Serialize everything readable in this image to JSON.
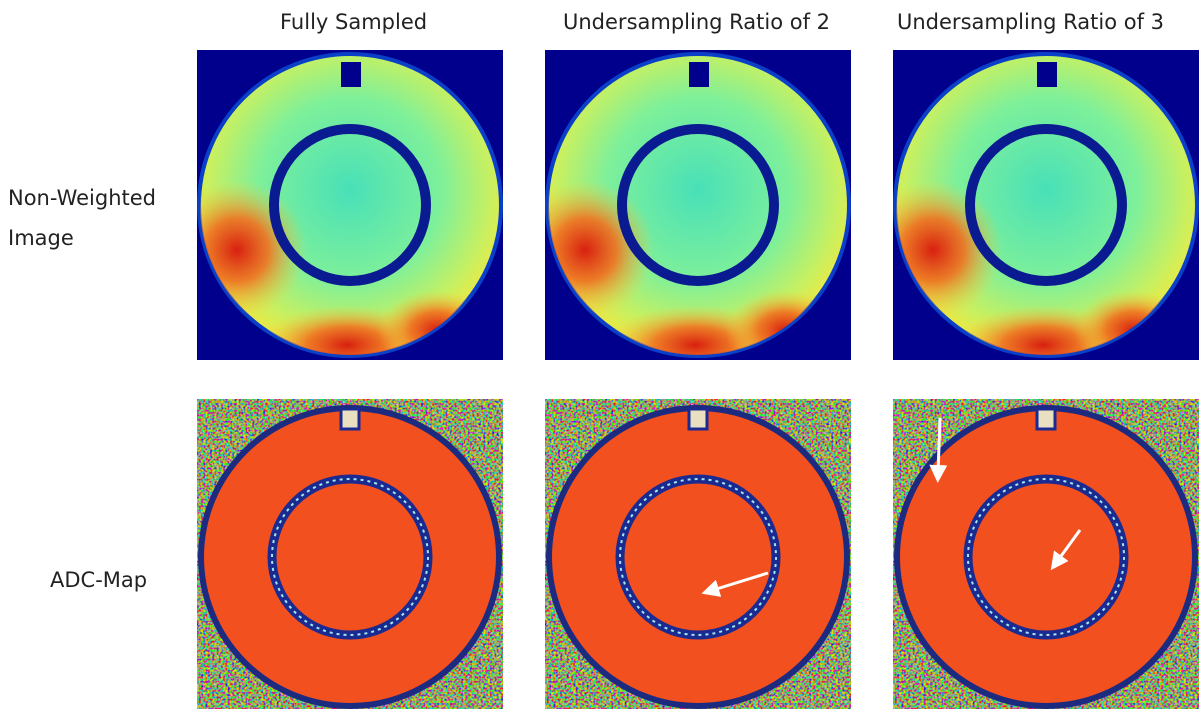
{
  "columns": [
    "Fully Sampled",
    "Undersampling Ratio of 2",
    "Undersampling Ratio of 3"
  ],
  "rows": [
    "Non-Weighted Image",
    "ADC-Map"
  ]
}
